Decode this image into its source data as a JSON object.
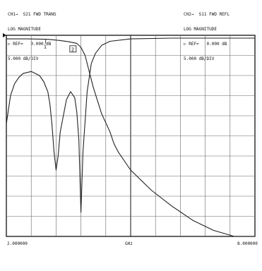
{
  "chart_data": {
    "type": "line",
    "header_left": [
      "CH1→  S21 FWD TRANS",
      "LOG MAGNITUDE",
      "▷ REF=   0.000 dB",
      "5.000 dB/DIV"
    ],
    "header_right": [
      "CH2→  S11 FWD REFL",
      "LOG MAGNITUDE",
      "▷ REF=   0.000 dB",
      "5.000 dB/DIV"
    ],
    "x_start": "2.000000",
    "x_center": "GHz",
    "x_stop": "8.000000",
    "y_ref_db": 0,
    "db_per_div": 5,
    "x_range": [
      2.0,
      8.0
    ],
    "y_range": [
      -50,
      0
    ],
    "grid_divisions": {
      "x": 10,
      "y": 10
    },
    "markers": [
      "1",
      "2"
    ],
    "series": [
      {
        "color": "#222222",
        "x": [
          2.0,
          2.5,
          2.8,
          3.0,
          3.3,
          3.5,
          3.7,
          3.8,
          3.9,
          4.0,
          4.1,
          4.3,
          4.5,
          4.6,
          4.7,
          5.0,
          5.5,
          6.0,
          6.5,
          7.0,
          7.5,
          8.0
        ],
        "values": [
          -0.9,
          -0.9,
          -0.95,
          -1.0,
          -1.3,
          -1.6,
          -2.0,
          -3.0,
          -5.0,
          -9.0,
          -13.0,
          -19.5,
          -24.0,
          -27.0,
          -29.0,
          -33.5,
          -38.5,
          -42.5,
          -46.0,
          -48.5,
          -50.0,
          -50.0
        ]
      },
      {
        "color": "#222222",
        "x": [
          2.0,
          2.1,
          2.2,
          2.3,
          2.4,
          2.6,
          2.8,
          2.9,
          3.0,
          3.05,
          3.1,
          3.15,
          3.2,
          3.25,
          3.3,
          3.45,
          3.55,
          3.65,
          3.7,
          3.75,
          3.8,
          3.85,
          3.95,
          4.05,
          4.15,
          4.3,
          4.5,
          5.0,
          6.0,
          8.0
        ],
        "values": [
          -22.0,
          -15.0,
          -12.0,
          -10.5,
          -9.5,
          -9.0,
          -10.0,
          -11.5,
          -14.0,
          -17.0,
          -22.0,
          -29.0,
          -33.5,
          -30.0,
          -24.0,
          -16.0,
          -14.0,
          -15.5,
          -19.0,
          -26.0,
          -44.0,
          -29.0,
          -14.0,
          -7.0,
          -4.5,
          -2.5,
          -1.5,
          -0.9,
          -0.7,
          -0.7
        ]
      }
    ]
  }
}
